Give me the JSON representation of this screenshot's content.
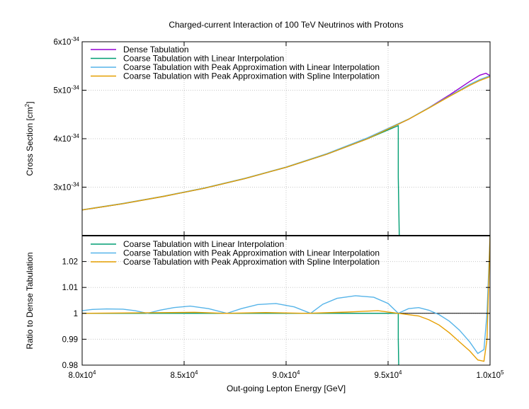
{
  "chart_data": [
    {
      "type": "line",
      "panel": "top",
      "title": "Charged-current Interaction of 100 TeV Neutrinos with Protons",
      "xlabel": "",
      "ylabel": "Cross Section [cm²]",
      "xlim": [
        80000,
        100000
      ],
      "ylim": [
        2e-34,
        6e-34
      ],
      "y_ticks": [
        {
          "value": 3e-34,
          "mant": "3x10",
          "exp": "-34"
        },
        {
          "value": 4e-34,
          "mant": "4x10",
          "exp": "-34"
        },
        {
          "value": 5e-34,
          "mant": "5x10",
          "exp": "-34"
        },
        {
          "value": 6e-34,
          "mant": "6x10",
          "exp": "-34"
        }
      ],
      "grid": true,
      "legend_position": "top-left",
      "series": [
        {
          "name": "Dense Tabulation",
          "color": "#9400d3",
          "x": [
            80000,
            82000,
            84000,
            86000,
            88000,
            90000,
            92000,
            94000,
            96000,
            97000,
            98000,
            99000,
            99500,
            99800,
            100000
          ],
          "y": [
            2.53e-34,
            2.66e-34,
            2.81e-34,
            2.98e-34,
            3.18e-34,
            3.41e-34,
            3.68e-34,
            4e-34,
            4.4e-34,
            4.64e-34,
            4.9e-34,
            5.18e-34,
            5.31e-34,
            5.35e-34,
            5.3e-34
          ]
        },
        {
          "name": "Coarse Tabulation with Linear Interpolation",
          "color": "#009e73",
          "x": [
            80000,
            82000,
            84000,
            86000,
            88000,
            90000,
            92000,
            94000,
            95500,
            95500,
            95550
          ],
          "y": [
            2.53e-34,
            2.66e-34,
            2.81e-34,
            2.98e-34,
            3.18e-34,
            3.41e-34,
            3.68e-34,
            4e-34,
            4.27e-34,
            3.2e-34,
            2e-34
          ]
        },
        {
          "name": "Coarse Tabulation with Peak Approximation with Linear Interpolation",
          "color": "#56b4e9",
          "x": [
            80000,
            82000,
            84000,
            86000,
            88000,
            90000,
            92000,
            94000,
            96000,
            97000,
            98000,
            99000,
            99500,
            100000
          ],
          "y": [
            2.535e-34,
            2.665e-34,
            2.815e-34,
            2.985e-34,
            3.185e-34,
            3.415e-34,
            3.69e-34,
            4.02e-34,
            4.405e-34,
            4.64e-34,
            4.88e-34,
            5.12e-34,
            5.22e-34,
            5.3e-34
          ]
        },
        {
          "name": "Coarse Tabulation with Peak Approximation with Spline Interpolation",
          "color": "#e69f00",
          "x": [
            80000,
            82000,
            84000,
            86000,
            88000,
            90000,
            92000,
            94000,
            96000,
            97000,
            98000,
            99000,
            99500,
            100000
          ],
          "y": [
            2.53e-34,
            2.66e-34,
            2.81e-34,
            2.98e-34,
            3.18e-34,
            3.41e-34,
            3.68e-34,
            4e-34,
            4.4e-34,
            4.63e-34,
            4.87e-34,
            5.1e-34,
            5.2e-34,
            5.28e-34
          ]
        }
      ]
    },
    {
      "type": "line",
      "panel": "bottom",
      "xlabel": "Out-going Lepton Energy [GeV]",
      "ylabel": "Ratio to Dense Tabulation",
      "xlim": [
        80000,
        100000
      ],
      "ylim": [
        0.98,
        1.03
      ],
      "x_ticks": [
        {
          "value": 80000,
          "mant": "8.0x10",
          "exp": "4"
        },
        {
          "value": 85000,
          "mant": "8.5x10",
          "exp": "4"
        },
        {
          "value": 90000,
          "mant": "9.0x10",
          "exp": "4"
        },
        {
          "value": 95000,
          "mant": "9.5x10",
          "exp": "4"
        },
        {
          "value": 100000,
          "mant": "1.0x10",
          "exp": "5"
        }
      ],
      "y_ticks": [
        {
          "value": 0.98,
          "label": "0.98"
        },
        {
          "value": 0.99,
          "label": "0.99"
        },
        {
          "value": 1.0,
          "label": "1"
        },
        {
          "value": 1.01,
          "label": "1.01"
        },
        {
          "value": 1.02,
          "label": "1.02"
        }
      ],
      "reference_line": 1.0,
      "grid": true,
      "legend_position": "top-left",
      "series": [
        {
          "name": "Coarse Tabulation with Linear Interpolation",
          "color": "#009e73",
          "x": [
            80000,
            95500,
            95500,
            95520
          ],
          "y": [
            1.0,
            1.0,
            0.99,
            0.98
          ]
        },
        {
          "name": "Coarse Tabulation with Peak Approximation with Linear Interpolation",
          "color": "#56b4e9",
          "x": [
            80000,
            80500,
            81200,
            82000,
            82600,
            83200,
            83800,
            84500,
            85300,
            86200,
            87100,
            87800,
            88600,
            89500,
            90400,
            91200,
            91800,
            92500,
            93400,
            94300,
            95000,
            95500,
            96000,
            96500,
            97000,
            97500,
            98000,
            98500,
            99000,
            99400,
            99700,
            99850,
            100000
          ],
          "y": [
            1.001,
            1.0015,
            1.0017,
            1.0016,
            1.001,
            1.0,
            1.0012,
            1.0022,
            1.0028,
            1.0018,
            1.0,
            1.0018,
            1.0034,
            1.0038,
            1.0025,
            1.0,
            1.0035,
            1.0058,
            1.0068,
            1.0062,
            1.0038,
            1.0,
            1.0018,
            1.0022,
            1.0012,
            0.9995,
            0.997,
            0.9935,
            0.989,
            0.9845,
            0.986,
            1.0,
            1.03
          ]
        },
        {
          "name": "Coarse Tabulation with Peak Approximation with Spline Interpolation",
          "color": "#e69f00",
          "x": [
            80000,
            83000,
            85500,
            87000,
            89000,
            91000,
            93000,
            94500,
            95500,
            96500,
            97000,
            97500,
            98000,
            98500,
            99000,
            99400,
            99700,
            99850,
            100000
          ],
          "y": [
            1.0,
            1.0002,
            1.0004,
            1.0,
            1.0003,
            1.0,
            1.0005,
            1.001,
            1.0,
            0.999,
            0.9975,
            0.9955,
            0.9925,
            0.989,
            0.9855,
            0.982,
            0.9815,
            0.99,
            1.03
          ]
        }
      ]
    }
  ]
}
